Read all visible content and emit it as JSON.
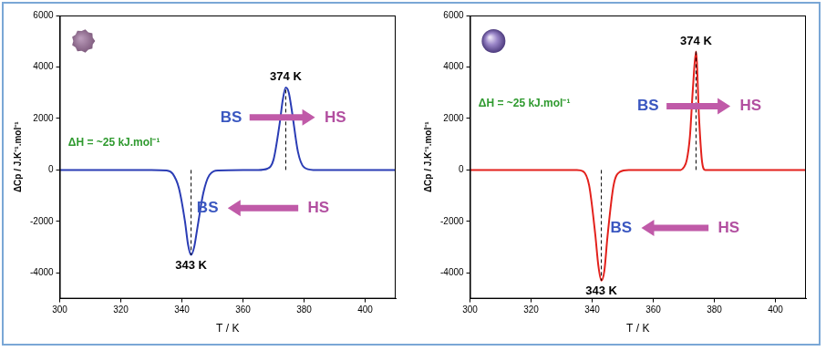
{
  "chart_data": [
    {
      "type": "line",
      "color": "#2b3db5",
      "x": [
        300,
        330,
        335,
        337,
        339,
        341,
        342,
        343,
        344,
        345,
        347,
        349,
        352,
        360,
        365,
        368,
        370,
        372,
        373,
        374,
        375,
        376,
        378,
        380,
        383,
        390,
        410
      ],
      "values": [
        0,
        0,
        -20,
        -150,
        -700,
        -2000,
        -2900,
        -3300,
        -3000,
        -2300,
        -900,
        -200,
        -20,
        0,
        0,
        50,
        400,
        1800,
        2700,
        3200,
        3000,
        2300,
        700,
        100,
        0,
        0,
        0
      ],
      "xlim": [
        300,
        410
      ],
      "ylim": [
        -5000,
        6000
      ],
      "xticks": [
        300,
        320,
        340,
        360,
        380,
        400
      ],
      "yticks": [
        -4000,
        -2000,
        0,
        2000,
        4000,
        6000
      ],
      "x_label": "T / K",
      "y_label": "ΔCp / J.K⁻¹.mol⁻¹",
      "grid": false,
      "peaks": [
        {
          "x": 374,
          "label": "374 K"
        },
        {
          "x": 343,
          "label": "343 K"
        }
      ],
      "annotations": [
        "ΔH = ~25 kJ.mol⁻¹"
      ],
      "arrows": [
        {
          "from": "BS",
          "to": "HS"
        },
        {
          "from": "HS",
          "to": "BS"
        }
      ]
    },
    {
      "type": "line",
      "color": "#e3211c",
      "x": [
        300,
        330,
        335,
        337,
        339,
        341,
        342,
        343,
        344,
        345,
        347,
        349,
        352,
        360,
        369,
        370,
        371,
        372,
        373,
        374,
        375,
        376,
        377,
        380,
        390,
        410
      ],
      "values": [
        0,
        0,
        0,
        -50,
        -600,
        -2500,
        -3700,
        -4300,
        -3900,
        -2600,
        -600,
        -80,
        0,
        0,
        0,
        100,
        400,
        1300,
        3200,
        4600,
        2000,
        300,
        0,
        0,
        0,
        0
      ],
      "xlim": [
        300,
        410
      ],
      "ylim": [
        -5000,
        6000
      ],
      "xticks": [
        300,
        320,
        340,
        360,
        380,
        400
      ],
      "yticks": [
        -4000,
        -2000,
        0,
        2000,
        4000,
        6000
      ],
      "x_label": "T / K",
      "y_label": "ΔCp / J.K⁻¹.mol⁻¹",
      "grid": false,
      "peaks": [
        {
          "x": 374,
          "label": "374 K"
        },
        {
          "x": 343,
          "label": "343 K"
        }
      ],
      "annotations": [
        "ΔH = ~25 kJ.mol⁻¹"
      ],
      "arrows": [
        {
          "from": "BS",
          "to": "HS"
        },
        {
          "from": "HS",
          "to": "BS"
        }
      ]
    }
  ]
}
